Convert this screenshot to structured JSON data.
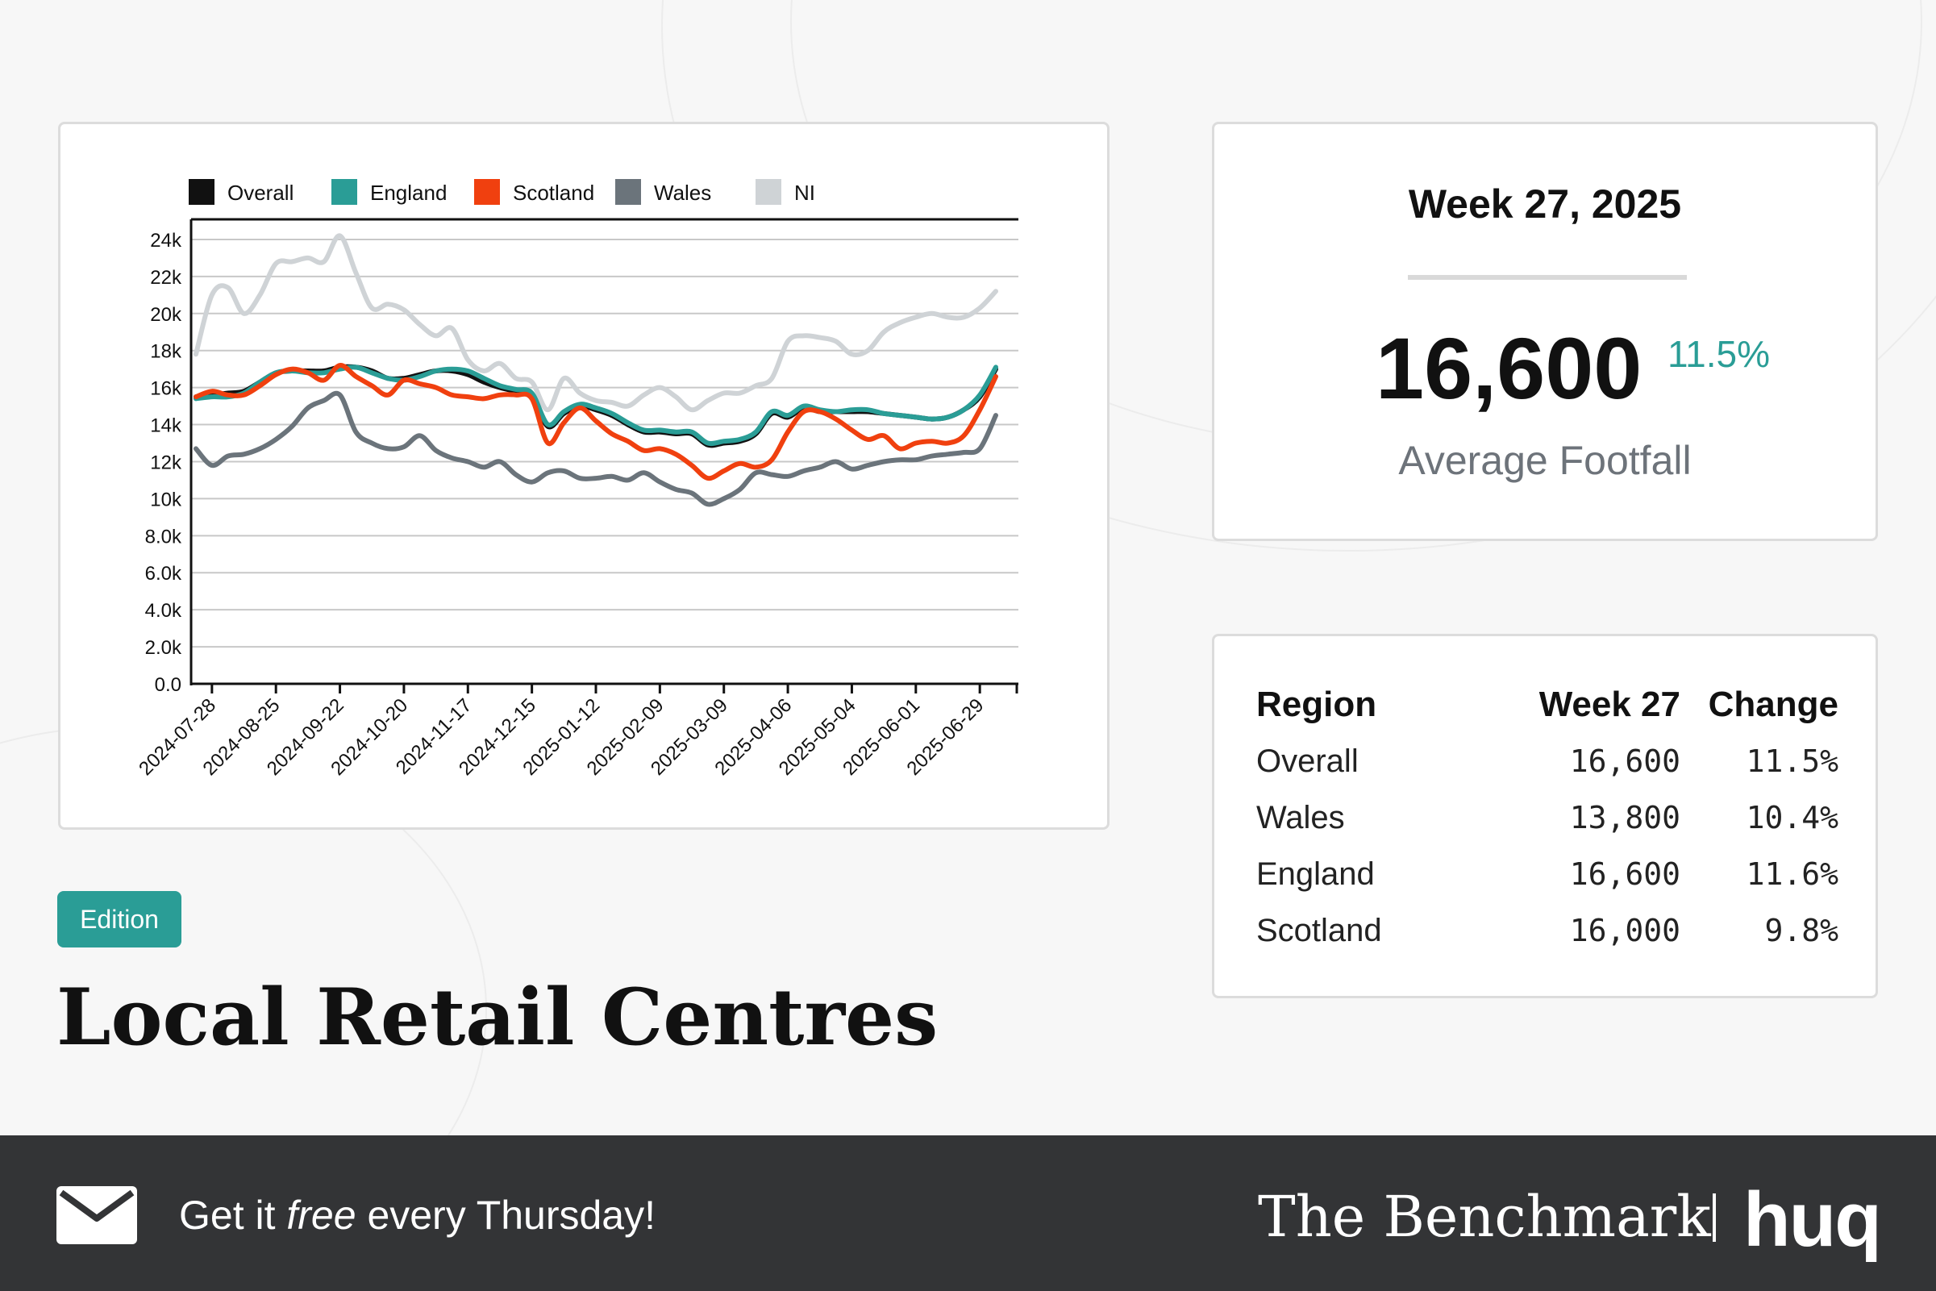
{
  "header": {
    "edition_label": "Edition",
    "title": "Local Retail Centres"
  },
  "kpi": {
    "week": "Week 27, 2025",
    "value": "16,600",
    "change": "11.5%",
    "label": "Average Footfall"
  },
  "table": {
    "headers": [
      "Region",
      "Week 27",
      "Change"
    ],
    "rows": [
      {
        "region": "Overall",
        "value": "16,600",
        "change": "11.5%"
      },
      {
        "region": "Wales",
        "value": "13,800",
        "change": "10.4%"
      },
      {
        "region": "England",
        "value": "16,600",
        "change": "11.6%"
      },
      {
        "region": "Scotland",
        "value": "16,000",
        "change": "9.8%"
      }
    ]
  },
  "footer": {
    "cta_prefix": "Get it ",
    "cta_emph": "free",
    "cta_suffix": " every Thursday!",
    "brand": "The Benchmark",
    "logo": "huq",
    "mail_icon": "envelope-icon"
  },
  "colors": {
    "accent": "#2a9d96",
    "footer_bg": "#333436",
    "overall": "#111111",
    "england": "#2a9d96",
    "scotland": "#f0400f",
    "wales": "#6b747b",
    "ni": "#cfd3d6"
  },
  "chart_data": {
    "type": "line",
    "xlabel": "",
    "ylabel": "",
    "ylim": [
      0,
      25000
    ],
    "grid": true,
    "legend_position": "top",
    "yticks": [
      0,
      2000,
      4000,
      6000,
      8000,
      10000,
      12000,
      14000,
      16000,
      18000,
      20000,
      22000,
      24000
    ],
    "ytick_labels": [
      "0.0",
      "2.0k",
      "4.0k",
      "6.0k",
      "8.0k",
      "10k",
      "12k",
      "14k",
      "16k",
      "18k",
      "20k",
      "22k",
      "24k"
    ],
    "x": [
      "2024-07-21",
      "2024-07-28",
      "2024-08-04",
      "2024-08-11",
      "2024-08-18",
      "2024-08-25",
      "2024-09-01",
      "2024-09-08",
      "2024-09-15",
      "2024-09-22",
      "2024-09-29",
      "2024-10-06",
      "2024-10-13",
      "2024-10-20",
      "2024-10-27",
      "2024-11-03",
      "2024-11-10",
      "2024-11-17",
      "2024-11-24",
      "2024-12-01",
      "2024-12-08",
      "2024-12-15",
      "2024-12-22",
      "2024-12-29",
      "2025-01-05",
      "2025-01-12",
      "2025-01-19",
      "2025-01-26",
      "2025-02-02",
      "2025-02-09",
      "2025-02-16",
      "2025-02-23",
      "2025-03-02",
      "2025-03-09",
      "2025-03-16",
      "2025-03-23",
      "2025-03-30",
      "2025-04-06",
      "2025-04-13",
      "2025-04-20",
      "2025-04-27",
      "2025-05-04",
      "2025-05-11",
      "2025-05-18",
      "2025-05-25",
      "2025-06-01",
      "2025-06-08",
      "2025-06-15",
      "2025-06-22",
      "2025-06-29",
      "2025-07-06"
    ],
    "xtick_labels": [
      "2024-07-28",
      "2024-08-25",
      "2024-09-22",
      "2024-10-20",
      "2024-11-17",
      "2024-12-15",
      "2025-01-12",
      "2025-02-09",
      "2025-03-09",
      "2025-04-06",
      "2025-05-04",
      "2025-06-01",
      "2025-06-29"
    ],
    "series": [
      {
        "name": "NI",
        "color": "#cfd3d6",
        "values": [
          17800,
          21000,
          21400,
          20000,
          21000,
          22700,
          22800,
          23000,
          22800,
          24200,
          22200,
          20300,
          20500,
          20200,
          19400,
          18800,
          19200,
          17500,
          16900,
          17300,
          16500,
          16300,
          14800,
          16500,
          15700,
          15300,
          15200,
          15000,
          15600,
          16000,
          15500,
          14800,
          15300,
          15700,
          15700,
          16100,
          16500,
          18500,
          18800,
          18700,
          18500,
          17800,
          18000,
          19000,
          19500,
          19800,
          20000,
          19800,
          19800,
          20300,
          21200
        ]
      },
      {
        "name": "Overall",
        "color": "#111111",
        "values": [
          15500,
          15600,
          15700,
          15800,
          16300,
          16800,
          16900,
          16900,
          16900,
          17100,
          17100,
          16900,
          16500,
          16500,
          16700,
          16900,
          16900,
          16700,
          16300,
          16000,
          15800,
          15600,
          13900,
          14600,
          15000,
          14800,
          14500,
          14000,
          13600,
          13600,
          13500,
          13500,
          12900,
          13000,
          13100,
          13500,
          14600,
          14400,
          14900,
          14700,
          14700,
          14700,
          14700,
          14600,
          14500,
          14400,
          14300,
          14400,
          14800,
          15500,
          17000
        ]
      },
      {
        "name": "England",
        "color": "#2a9d96",
        "values": [
          15400,
          15500,
          15500,
          15700,
          16300,
          16800,
          16900,
          16800,
          16800,
          17000,
          17100,
          16800,
          16500,
          16400,
          16600,
          16900,
          17000,
          16900,
          16500,
          16100,
          15900,
          15700,
          14000,
          14700,
          15100,
          14900,
          14600,
          14100,
          13700,
          13700,
          13600,
          13600,
          13000,
          13100,
          13200,
          13600,
          14700,
          14500,
          15000,
          14800,
          14700,
          14800,
          14800,
          14600,
          14500,
          14400,
          14300,
          14400,
          14800,
          15600,
          17100
        ]
      },
      {
        "name": "Scotland",
        "color": "#f0400f",
        "values": [
          15500,
          15800,
          15600,
          15600,
          16100,
          16700,
          17000,
          16800,
          16400,
          17200,
          16600,
          16100,
          15600,
          16400,
          16200,
          16000,
          15600,
          15500,
          15400,
          15600,
          15600,
          15400,
          13000,
          14100,
          14900,
          14200,
          13500,
          13100,
          12600,
          12700,
          12400,
          11800,
          11100,
          11500,
          11900,
          11700,
          12100,
          13600,
          14700,
          14700,
          14300,
          13700,
          13200,
          13400,
          12700,
          13000,
          13100,
          13000,
          13400,
          14800,
          16600
        ]
      },
      {
        "name": "Wales",
        "color": "#6b747b",
        "values": [
          12700,
          11800,
          12300,
          12400,
          12700,
          13200,
          13900,
          14900,
          15300,
          15600,
          13600,
          13000,
          12700,
          12800,
          13400,
          12600,
          12200,
          12000,
          11700,
          12000,
          11300,
          10900,
          11400,
          11500,
          11100,
          11100,
          11200,
          11000,
          11400,
          10900,
          10500,
          10300,
          9700,
          10000,
          10500,
          11400,
          11300,
          11200,
          11500,
          11700,
          12000,
          11600,
          11800,
          12000,
          12100,
          12100,
          12300,
          12400,
          12500,
          12700,
          14500
        ]
      }
    ],
    "legend_order": [
      "Overall",
      "England",
      "Scotland",
      "Wales",
      "NI"
    ]
  }
}
